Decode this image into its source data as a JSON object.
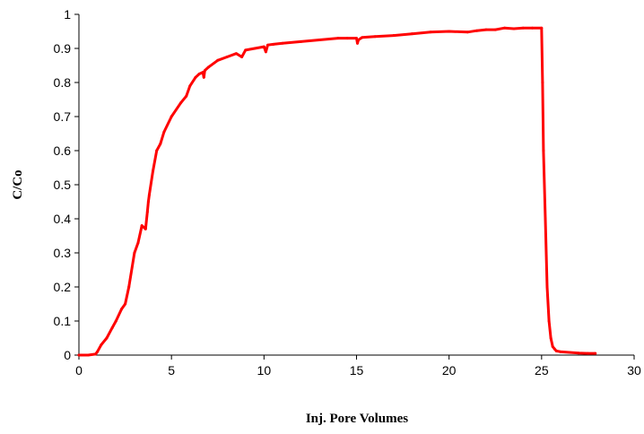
{
  "chart_data": {
    "type": "line",
    "title": "",
    "xlabel": "Inj. Pore Volumes",
    "ylabel": "C/Co",
    "xlim": [
      0,
      30
    ],
    "ylim": [
      0,
      1
    ],
    "x_ticks": [
      0,
      5,
      10,
      15,
      20,
      25,
      30
    ],
    "y_ticks": [
      0,
      0.1,
      0.2,
      0.3,
      0.4,
      0.5,
      0.6,
      0.7,
      0.8,
      0.9,
      1
    ],
    "x_tick_labels": [
      "0",
      "5",
      "10",
      "15",
      "20",
      "25",
      "30"
    ],
    "y_tick_labels": [
      "0",
      "0.1",
      "0.2",
      "0.3",
      "0.4",
      "0.5",
      "0.6",
      "0.7",
      "0.8",
      "0.9",
      "1"
    ],
    "grid": false,
    "legend": "none",
    "series_color": "#ff0000",
    "series": [
      {
        "x": [
          0,
          0.5,
          0.9,
          1.0,
          1.2,
          1.5,
          1.8,
          2.0,
          2.3,
          2.5,
          2.7,
          3.0,
          3.2,
          3.4,
          3.6,
          3.7,
          3.75,
          3.8,
          4.0,
          4.2,
          4.4,
          4.6,
          5.0,
          5.5,
          5.8,
          6.0,
          6.3,
          6.5,
          6.7,
          6.75,
          6.8,
          7.0,
          7.5,
          8.0,
          8.5,
          8.8,
          9.0,
          9.5,
          10.0,
          10.1,
          10.2,
          10.5,
          11,
          12,
          13,
          14,
          14.5,
          15.0,
          15.05,
          15.1,
          15.3,
          16,
          17,
          18,
          19,
          20,
          21,
          21.5,
          22,
          22.5,
          23,
          23.5,
          24,
          24.5,
          25.0,
          25.05,
          25.1,
          25.2,
          25.3,
          25.4,
          25.5,
          25.6,
          25.7,
          25.8,
          26.0,
          26.5,
          27.0,
          27.5,
          27.9
        ],
        "y": [
          0.0,
          0.0,
          0.003,
          0.01,
          0.03,
          0.05,
          0.08,
          0.1,
          0.135,
          0.15,
          0.2,
          0.3,
          0.33,
          0.38,
          0.37,
          0.42,
          0.45,
          0.47,
          0.54,
          0.6,
          0.62,
          0.655,
          0.7,
          0.74,
          0.76,
          0.79,
          0.815,
          0.825,
          0.83,
          0.815,
          0.835,
          0.845,
          0.865,
          0.875,
          0.885,
          0.875,
          0.895,
          0.9,
          0.905,
          0.89,
          0.91,
          0.912,
          0.915,
          0.92,
          0.925,
          0.93,
          0.93,
          0.93,
          0.915,
          0.925,
          0.932,
          0.935,
          0.938,
          0.943,
          0.948,
          0.95,
          0.948,
          0.952,
          0.955,
          0.955,
          0.96,
          0.958,
          0.96,
          0.96,
          0.96,
          0.8,
          0.6,
          0.4,
          0.2,
          0.1,
          0.05,
          0.025,
          0.018,
          0.012,
          0.01,
          0.008,
          0.006,
          0.005,
          0.005
        ]
      }
    ]
  }
}
